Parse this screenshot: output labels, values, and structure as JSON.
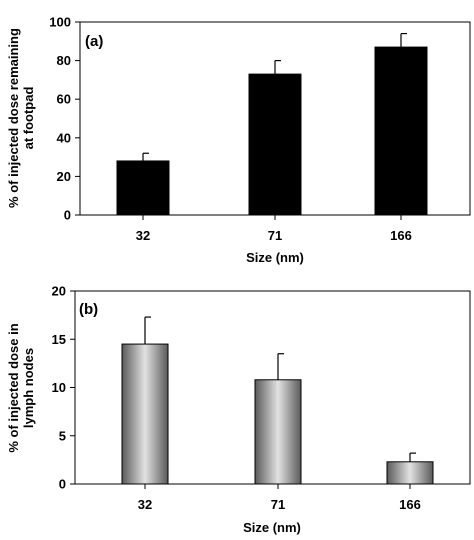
{
  "chart_data": [
    {
      "type": "bar",
      "panel_label": "(a)",
      "categories": [
        "32",
        "71",
        "166"
      ],
      "values": [
        28,
        73,
        87
      ],
      "errors": [
        4,
        7,
        7
      ],
      "xlabel": "Size (nm)",
      "ylabel": "% of injected dose remaining at footpad",
      "ylim": [
        0,
        100
      ],
      "yticks": [
        "0",
        "20",
        "40",
        "60",
        "80",
        "100"
      ],
      "bar_style": "solid black",
      "grid": false
    },
    {
      "type": "bar",
      "panel_label": "(b)",
      "categories": [
        "32",
        "71",
        "166"
      ],
      "values": [
        14.5,
        10.8,
        2.3
      ],
      "errors": [
        2.8,
        2.7,
        0.9
      ],
      "xlabel": "Size (nm)",
      "ylabel": "% of injected dose in lymph nodes",
      "ylim": [
        0,
        20
      ],
      "yticks": [
        "0",
        "5",
        "10",
        "15",
        "20"
      ],
      "bar_style": "gray cylindrical gradient",
      "grid": false
    }
  ]
}
